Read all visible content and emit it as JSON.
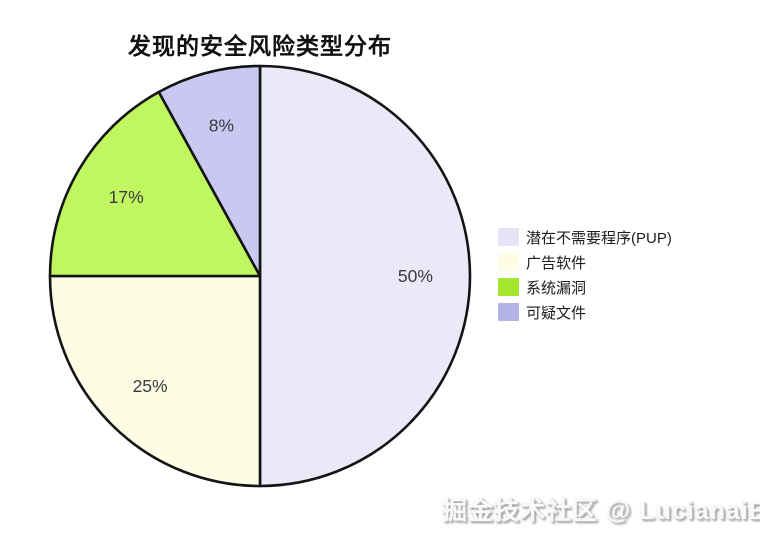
{
  "title": "发现的安全风险类型分布",
  "watermark": "掘金技术社区 @ LucianaiB",
  "chart_data": {
    "type": "pie",
    "title": "发现的安全风险类型分布",
    "start_angle": "top",
    "direction": "clockwise",
    "edge_color": "#141414",
    "label_color": "#3a3a40",
    "legend_position": "center-right",
    "legend_frame": false,
    "slices": [
      {
        "label": "潜在不需要程序(PUP)",
        "value": 50,
        "pct_label": "50%",
        "color": "#E9E9F8",
        "legend_color": "#E4E4F6"
      },
      {
        "label": "广告软件",
        "value": 25,
        "pct_label": "25%",
        "color": "#FDFDE5",
        "legend_color": "#FDFDE6"
      },
      {
        "label": "系统漏洞",
        "value": 17,
        "pct_label": "17%",
        "color": "#C0F660",
        "legend_color": "#A2E62E"
      },
      {
        "label": "可疑文件",
        "value": 8,
        "pct_label": "8%",
        "color": "#C8C8F0",
        "legend_color": "#B3B3E6"
      }
    ]
  }
}
